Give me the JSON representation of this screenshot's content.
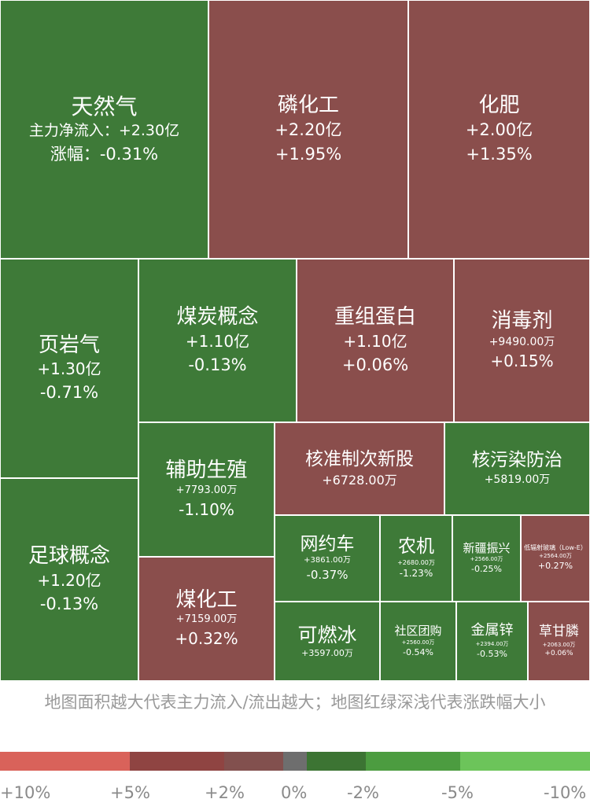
{
  "treemap": {
    "tiles": [
      {
        "id": "tianranqi",
        "name": "天然气",
        "flow": "主力净流入：+2.30亿",
        "pct": "涨幅：-0.31%",
        "color": "#3e7a38"
      },
      {
        "id": "linhuagong",
        "name": "磷化工",
        "flow": "+2.20亿",
        "pct": "+1.95%",
        "color": "#8a4e4c"
      },
      {
        "id": "huafei",
        "name": "化肥",
        "flow": "+2.00亿",
        "pct": "+1.35%",
        "color": "#8a4e4c"
      },
      {
        "id": "yeyanqi",
        "name": "页岩气",
        "flow": "+1.30亿",
        "pct": "-0.71%",
        "color": "#3e7a38"
      },
      {
        "id": "meitan",
        "name": "煤炭概念",
        "flow": "+1.10亿",
        "pct": "-0.13%",
        "color": "#3e7a38"
      },
      {
        "id": "chongzu",
        "name": "重组蛋白",
        "flow": "+1.10亿",
        "pct": "+0.06%",
        "color": "#8a4e4c"
      },
      {
        "id": "xiaodu",
        "name": "消毒剂",
        "flow": "+9490.00万",
        "pct": "+0.15%",
        "color": "#8a4e4c"
      },
      {
        "id": "zuqiu",
        "name": "足球概念",
        "flow": "+1.20亿",
        "pct": "-0.13%",
        "color": "#3e7a38"
      },
      {
        "id": "fuzhu",
        "name": "辅助生殖",
        "flow": "+7793.00万",
        "pct": "-1.10%",
        "color": "#3e7a38"
      },
      {
        "id": "hezhun",
        "name": "核准制次新股",
        "flow": "+6728.00万",
        "pct": "",
        "color": "#8a4e4c"
      },
      {
        "id": "hewuran",
        "name": "核污染防治",
        "flow": "+5819.00万",
        "pct": "",
        "color": "#3e7a38"
      },
      {
        "id": "meihuagong",
        "name": "煤化工",
        "flow": "+7159.00万",
        "pct": "+0.32%",
        "color": "#8a4e4c"
      },
      {
        "id": "wangyueche",
        "name": "网约车",
        "flow": "+3861.00万",
        "pct": "-0.37%",
        "color": "#3e7a38"
      },
      {
        "id": "nongji",
        "name": "农机",
        "flow": "+2680.00万",
        "pct": "-1.23%",
        "color": "#3e7a38"
      },
      {
        "id": "xinjiang",
        "name": "新疆振兴",
        "flow": "+2566.00万",
        "pct": "-0.25%",
        "color": "#3e7a38"
      },
      {
        "id": "dibuse",
        "name": "低辐射玻璃（Low-E）",
        "flow": "+2564.00万",
        "pct": "+0.27%",
        "color": "#8a4e4c"
      },
      {
        "id": "keranbing",
        "name": "可燃冰",
        "flow": "+3597.00万",
        "pct": "",
        "color": "#3e7a38"
      },
      {
        "id": "shequ",
        "name": "社区团购",
        "flow": "+2560.00万",
        "pct": "-0.54%",
        "color": "#3e7a38"
      },
      {
        "id": "jinshuxin",
        "name": "金属锌",
        "flow": "+2394.00万",
        "pct": "-0.53%",
        "color": "#3e7a38"
      },
      {
        "id": "caoganlin",
        "name": "草甘膦",
        "flow": "+2063.00万",
        "pct": "+0.06%",
        "color": "#8a4e4c"
      }
    ]
  },
  "caption": "地图面积越大代表主力流入/流出越大；地图红绿深浅代表涨跌幅大小",
  "legend": {
    "segments": [
      {
        "color": "#d9625a"
      },
      {
        "color": "#8f4442"
      },
      {
        "color": "#82504e"
      },
      {
        "color": "#6e6e6e"
      },
      {
        "color": "#3c7433"
      },
      {
        "color": "#4c9c40"
      },
      {
        "color": "#6cc45a"
      }
    ],
    "labels": [
      "+10%",
      "+5%",
      "+2%",
      "0%",
      "-2%",
      "-5%",
      "-10%"
    ]
  }
}
